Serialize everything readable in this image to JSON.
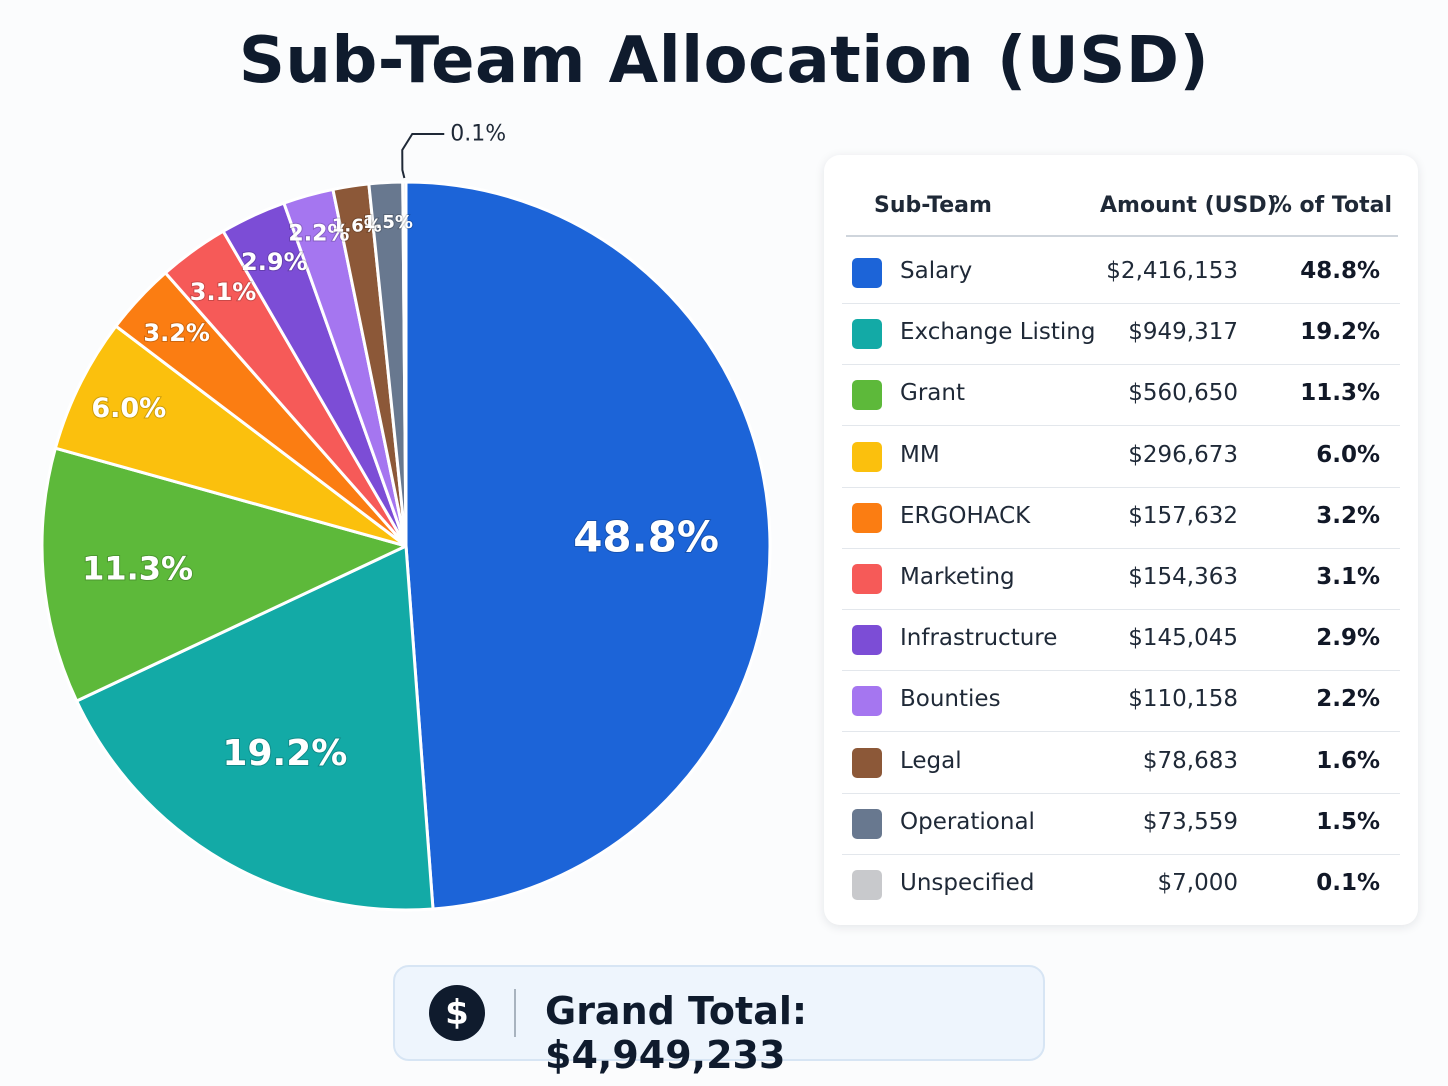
{
  "title": "Sub-Team Allocation (USD)",
  "legend": {
    "headers": {
      "team": "Sub-Team",
      "amount": "Amount (USD)",
      "pct": "% of Total"
    }
  },
  "total": {
    "icon": "dollar-coin-icon",
    "symbol": "$",
    "text": "Grand Total: $4,949,233"
  },
  "chart_data": {
    "type": "pie",
    "title": "Sub-Team Allocation (USD)",
    "slices": [
      {
        "name": "Salary",
        "amount": "$2,416,153",
        "value": 2416153,
        "pct": "48.8%",
        "color": "#1c64d8"
      },
      {
        "name": "Exchange Listing",
        "amount": "$949,317",
        "value": 949317,
        "pct": "19.2%",
        "color": "#13aaa6"
      },
      {
        "name": "Grant",
        "amount": "$560,650",
        "value": 560650,
        "pct": "11.3%",
        "color": "#5db93a"
      },
      {
        "name": "MM",
        "amount": "$296,673",
        "value": 296673,
        "pct": "6.0%",
        "color": "#fbc00d"
      },
      {
        "name": "ERGOHACK",
        "amount": "$157,632",
        "value": 157632,
        "pct": "3.2%",
        "color": "#fb7d12"
      },
      {
        "name": "Marketing",
        "amount": "$154,363",
        "value": 154363,
        "pct": "3.1%",
        "color": "#f65a58"
      },
      {
        "name": "Infrastructure",
        "amount": "$145,045",
        "value": 145045,
        "pct": "2.9%",
        "color": "#7c4dd6"
      },
      {
        "name": "Bounties",
        "amount": "$110,158",
        "value": 110158,
        "pct": "2.2%",
        "color": "#a576f0"
      },
      {
        "name": "Legal",
        "amount": "$78,683",
        "value": 78683,
        "pct": "1.6%",
        "color": "#8c5838"
      },
      {
        "name": "Operational",
        "amount": "$73,559",
        "value": 73559,
        "pct": "1.5%",
        "color": "#68788f"
      },
      {
        "name": "Unspecified",
        "amount": "$7,000",
        "value": 7000,
        "pct": "0.1%",
        "color": "#c8c9cc"
      }
    ]
  }
}
